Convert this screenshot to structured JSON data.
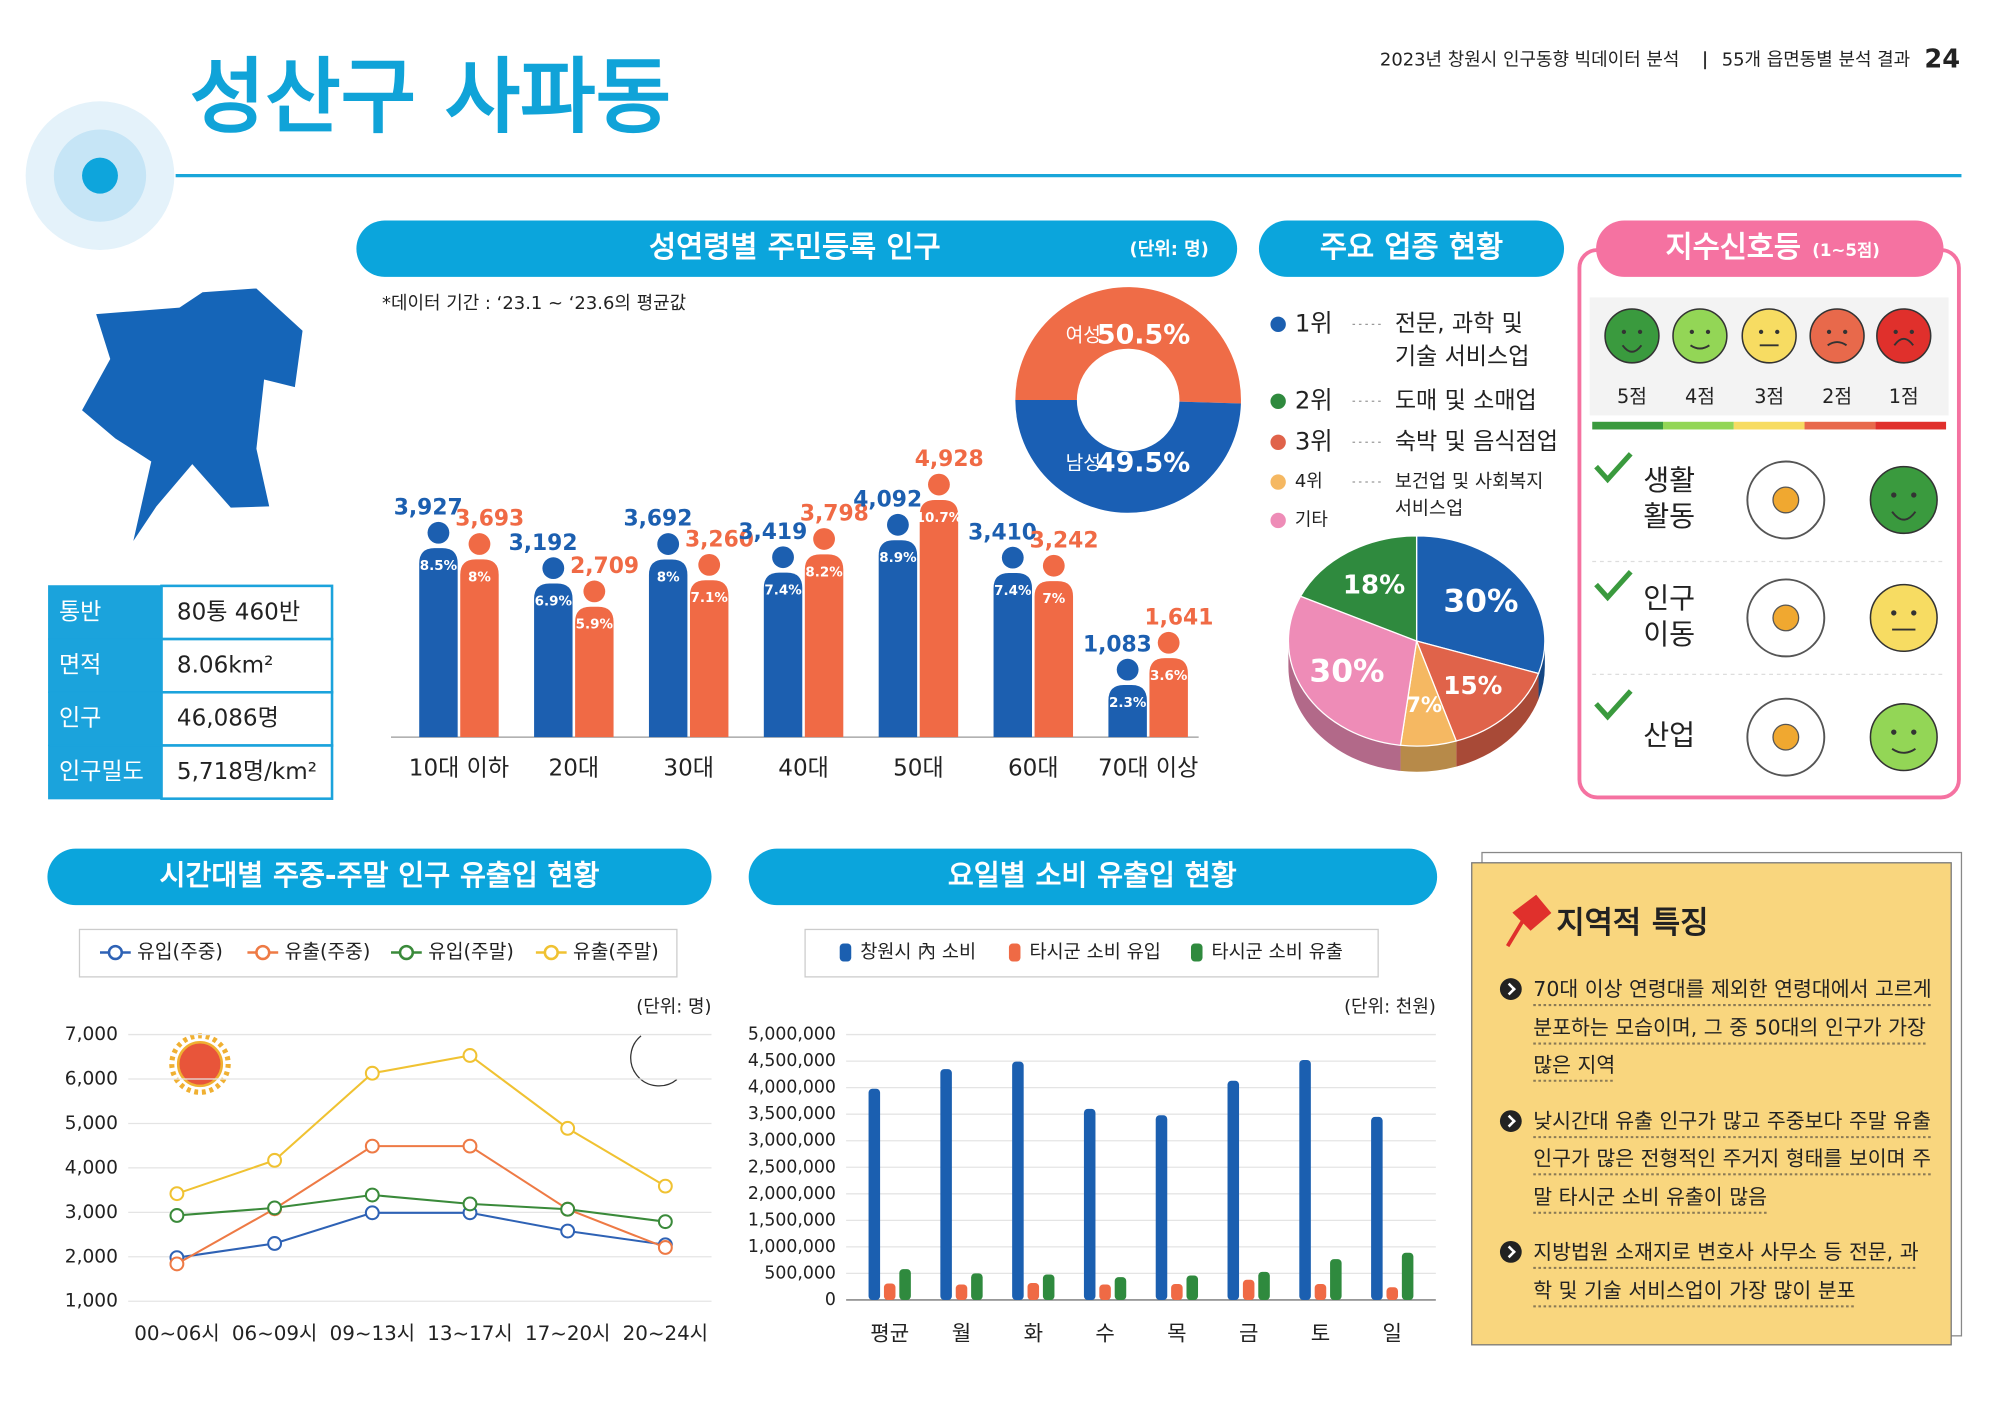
{
  "header": {
    "report": "2023년 창원시 인구동향 빅데이터 분석",
    "section": "55개 읍면동별 분석 결과",
    "page": "24"
  },
  "title": "성산구 사파동",
  "info_table": {
    "rows": [
      [
        "통반",
        "80통 460반"
      ],
      [
        "면적",
        "8.06km²"
      ],
      [
        "인구",
        "46,086명"
      ],
      [
        "인구밀도",
        "5,718명/km²"
      ]
    ]
  },
  "chart_data": [
    {
      "type": "bar",
      "title": "성연령별 주민등록 인구",
      "unit": "(단위: 명)",
      "note": "*데이터 기간 : ‘23.1 ~ ‘23.6의 평균값",
      "categories": [
        "10대 이하",
        "20대",
        "30대",
        "40대",
        "50대",
        "60대",
        "70대 이상"
      ],
      "series": [
        {
          "color": "#1c5fb0",
          "values": [
            3927,
            3192,
            3692,
            3419,
            4092,
            3410,
            1083
          ],
          "value_labels": [
            "3,927",
            "3,192",
            "3,692",
            "3,419",
            "4,092",
            "3,410",
            "1,083"
          ],
          "share_labels": [
            "8.5%",
            "6.9%",
            "8%",
            "7.4%",
            "8.9%",
            "7.4%",
            "2.3%"
          ]
        },
        {
          "color": "#f06a45",
          "values": [
            3693,
            2709,
            3260,
            3798,
            4928,
            3242,
            1641
          ],
          "value_labels": [
            "3,693",
            "2,709",
            "3,260",
            "3,798",
            "4,928",
            "3,242",
            "1,641"
          ],
          "share_labels": [
            "8%",
            "5.9%",
            "7.1%",
            "8.2%",
            "10.7%",
            "7%",
            "3.6%"
          ]
        }
      ]
    },
    {
      "type": "donut",
      "categories": [
        "여성",
        "남성"
      ],
      "values": [
        50.5,
        49.5
      ],
      "value_labels": [
        "50.5%",
        "49.5%"
      ],
      "colors": [
        "#ef6c47",
        "#1a5fb4"
      ]
    },
    {
      "type": "pie3d",
      "title": "주요 업종 현황",
      "values": [
        30,
        15,
        7,
        30,
        18
      ],
      "value_labels": [
        "30%",
        "15%",
        "7%",
        "30%",
        "18%"
      ],
      "colors": [
        "#1b5fb0",
        "#e0634a",
        "#f5b862",
        "#ee8cb7",
        "#2f8a3e"
      ],
      "legend": [
        {
          "rank": "1위",
          "name": [
            "전문, 과학 및",
            "기술 서비스업"
          ],
          "color": "#1b5fb0"
        },
        {
          "rank": "2위",
          "name": [
            "도매 및 소매업"
          ],
          "color": "#2f8a3e"
        },
        {
          "rank": "3위",
          "name": [
            "숙박 및 음식점업"
          ],
          "color": "#e0634a"
        },
        {
          "rank": "4위",
          "name": [
            "보건업 및 사회복지",
            "서비스업"
          ],
          "color": "#f5b862"
        },
        {
          "rank": "기타",
          "color": "#ee8cb7"
        }
      ]
    },
    {
      "type": "line",
      "title": "시간대별 주중-주말 인구 유출입 현황",
      "unit": "(단위: 명)",
      "categories": [
        "00~06시",
        "06~09시",
        "09~13시",
        "13~17시",
        "17~20시",
        "20~24시"
      ],
      "ylim": [
        1000,
        7000
      ],
      "yticks": [
        {
          "value": 1000,
          "label": "1,000"
        },
        {
          "value": 2000,
          "label": "2,000"
        },
        {
          "value": 3000,
          "label": "3,000"
        },
        {
          "value": 4000,
          "label": "4,000"
        },
        {
          "value": 5000,
          "label": "5,000"
        },
        {
          "value": 6000,
          "label": "6,000"
        },
        {
          "value": 7000,
          "label": "7,000"
        }
      ],
      "grid": true,
      "series": [
        {
          "name": "유입(주중)",
          "color": "#2e62b5",
          "values": [
            1980,
            2300,
            2990,
            2990,
            2580,
            2270
          ]
        },
        {
          "name": "유출(주중)",
          "color": "#ee7a45",
          "values": [
            1840,
            3080,
            4490,
            4490,
            3070,
            2210
          ]
        },
        {
          "name": "유입(주말)",
          "color": "#3a8a3a",
          "values": [
            2930,
            3100,
            3390,
            3190,
            3070,
            2790
          ]
        },
        {
          "name": "유출(주말)",
          "color": "#f0c232",
          "values": [
            3420,
            4170,
            6130,
            6530,
            4890,
            3590
          ]
        }
      ]
    },
    {
      "type": "bar",
      "title": "요일별 소비 유출입 현황",
      "unit": "(단위: 천원)",
      "categories": [
        "평균",
        "월",
        "화",
        "수",
        "목",
        "금",
        "토",
        "일"
      ],
      "ylim": [
        0,
        5000000
      ],
      "yticks": [
        0,
        {
          "value": 500000,
          "label": "500,000"
        },
        {
          "value": 1000000,
          "label": "1,000,000"
        },
        {
          "value": 1500000,
          "label": "1,500,000"
        },
        {
          "value": 2000000,
          "label": "2,000,000"
        },
        {
          "value": 2500000,
          "label": "2,500,000"
        },
        {
          "value": 3000000,
          "label": "3,000,000"
        },
        {
          "value": 3500000,
          "label": "3,500,000"
        },
        {
          "value": 4000000,
          "label": "4,000,000"
        },
        {
          "value": 4500000,
          "label": "4,500,000"
        },
        {
          "value": 5000000,
          "label": "5,000,000"
        }
      ],
      "grid": true,
      "series": [
        {
          "name": "창원시 內 소비",
          "color": "#1b5fb0",
          "values": [
            3980000,
            4350000,
            4490000,
            3600000,
            3480000,
            4130000,
            4520000,
            3450000
          ]
        },
        {
          "name": "타시군 소비 유입",
          "color": "#ef6a45",
          "values": [
            310000,
            290000,
            320000,
            290000,
            300000,
            380000,
            300000,
            240000
          ]
        },
        {
          "name": "타시군 소비 유출",
          "color": "#2f8a3e",
          "values": [
            580000,
            500000,
            480000,
            430000,
            460000,
            530000,
            770000,
            890000
          ]
        }
      ]
    }
  ],
  "signal": {
    "title": "지수신호등",
    "subtitle": "(1~5점)",
    "scale": [
      {
        "label": "5점",
        "score": 5,
        "color": "#3a9a3e"
      },
      {
        "label": "4점",
        "score": 4,
        "color": "#93d656"
      },
      {
        "label": "3점",
        "score": 3,
        "color": "#f7dc62"
      },
      {
        "label": "2점",
        "score": 2,
        "color": "#e8694b"
      },
      {
        "label": "1점",
        "score": 1,
        "color": "#e0302c"
      }
    ],
    "rows": [
      {
        "label": [
          "생활",
          "활동"
        ],
        "score": 5
      },
      {
        "label": [
          "인구",
          "이동"
        ],
        "score": 3
      },
      {
        "label": [
          "산업"
        ],
        "score": 4
      }
    ]
  },
  "features": {
    "title": "지역적 특징",
    "items": [
      "70대 이상 연령대를 제외한 연령대에서 고르게 분포하는 모습이며, 그 중 50대의 인구가 가장 많은 지역",
      "낮시간대 유출 인구가 많고 주중보다 주말 유출인구가 많은 전형적인 주거지 형태를 보이며 주말 타시군 소비 유출이 많음",
      "지방법원 소재지로 변호사 사무소 등 전문, 과학 및 기술 서비스업이 가장 많이 분포"
    ]
  }
}
